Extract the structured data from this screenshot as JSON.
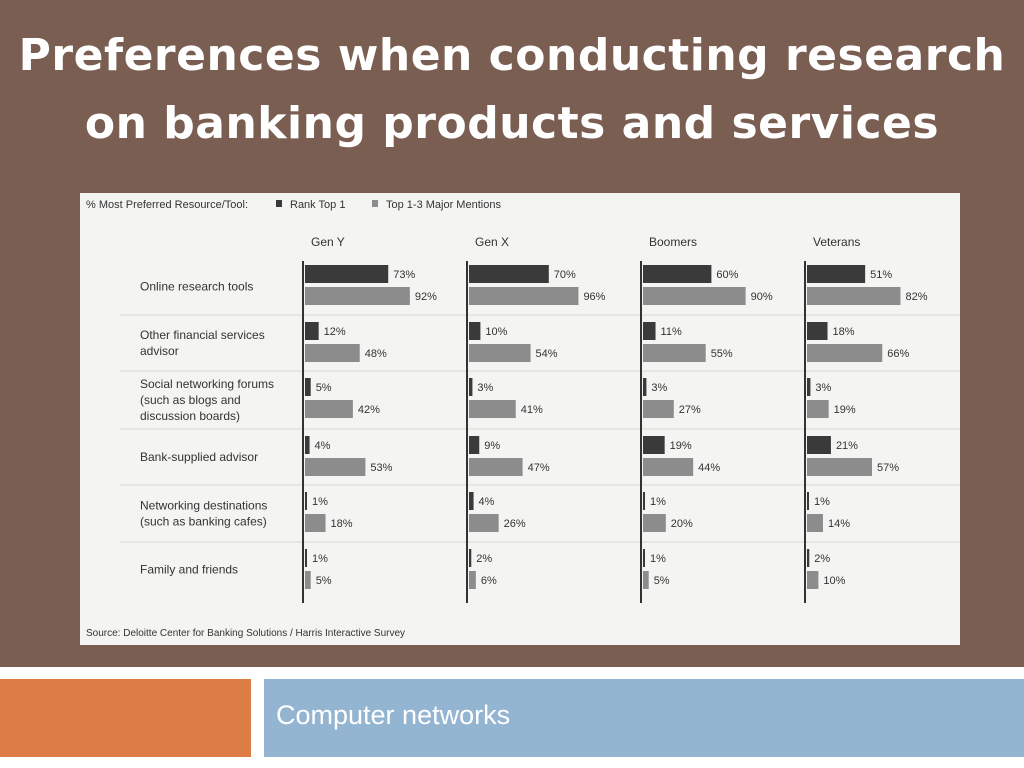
{
  "slide": {
    "title_line1": "Preferences when conducting research",
    "title_line2": "on banking products and services",
    "footer_text": "Computer networks"
  },
  "colors": {
    "background": "#7a5e52",
    "rank_top1": "#3a3a3a",
    "top3": "#8c8c8c",
    "footer_orange": "#de7c45",
    "footer_blue": "#94b5d2"
  },
  "chart_data": {
    "type": "bar",
    "orientation": "horizontal",
    "legend_title": "% Most Preferred Resource/Tool:",
    "legend": [
      "Rank Top 1",
      "Top 1-3  Major Mentions"
    ],
    "source": "Source: Deloitte Center for Banking Solutions / Harris Interactive Survey",
    "groups": [
      "Gen Y",
      "Gen X",
      "Boomers",
      "Veterans"
    ],
    "categories": [
      [
        "Online research tools"
      ],
      [
        "Other financial services",
        "advisor"
      ],
      [
        "Social networking forums",
        "(such as blogs and",
        "discussion boards)"
      ],
      [
        "Bank-supplied advisor"
      ],
      [
        "Networking destinations",
        "(such as banking cafes)"
      ],
      [
        "Family and friends"
      ]
    ],
    "series": [
      {
        "name": "Rank Top 1",
        "values": [
          [
            73,
            12,
            5,
            4,
            1,
            1
          ],
          [
            70,
            10,
            3,
            9,
            4,
            2
          ],
          [
            60,
            11,
            3,
            19,
            1,
            1
          ],
          [
            51,
            18,
            3,
            21,
            1,
            2
          ]
        ]
      },
      {
        "name": "Top 1-3  Major Mentions",
        "values": [
          [
            92,
            48,
            42,
            53,
            18,
            5
          ],
          [
            96,
            54,
            41,
            47,
            26,
            6
          ],
          [
            90,
            55,
            27,
            44,
            20,
            5
          ],
          [
            82,
            66,
            19,
            57,
            14,
            10
          ]
        ]
      }
    ],
    "unit": "%",
    "xlim": [
      0,
      100
    ]
  }
}
